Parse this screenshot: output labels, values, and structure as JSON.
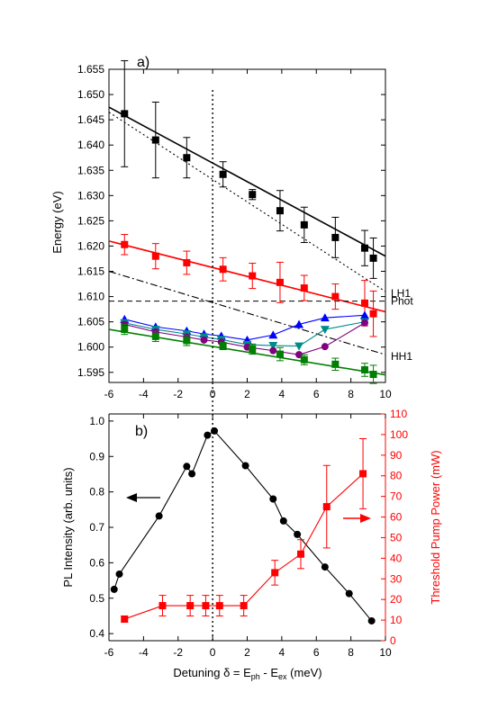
{
  "chart_data": [
    {
      "type": "scatter",
      "panel_label": "a)",
      "ylabel": "Energy (eV)",
      "xlim": [
        -6,
        10
      ],
      "ylim": [
        1.593,
        1.655
      ],
      "xticks": [
        -6,
        -4,
        -2,
        0,
        2,
        4,
        6,
        8,
        10
      ],
      "xtick_labels": [
        "-6",
        "-4",
        "-2",
        "0",
        "2",
        "4",
        "6",
        "8",
        "10"
      ],
      "yticks": [
        1.595,
        1.6,
        1.605,
        1.61,
        1.615,
        1.62,
        1.625,
        1.63,
        1.635,
        1.64,
        1.645,
        1.65,
        1.655
      ],
      "ytick_labels": [
        "1.595",
        "1.600",
        "1.605",
        "1.610",
        "1.615",
        "1.620",
        "1.625",
        "1.630",
        "1.635",
        "1.640",
        "1.645",
        "1.650",
        "1.655"
      ],
      "series": [
        {
          "color": "#000000",
          "marker": "square",
          "x": [
            -5.1,
            -3.3,
            -1.5,
            0.6,
            2.3,
            3.9,
            5.3,
            7.1,
            8.8,
            9.3
          ],
          "y": [
            1.6462,
            1.641,
            1.6375,
            1.6342,
            1.6302,
            1.627,
            1.6242,
            1.6217,
            1.6196,
            1.6176
          ],
          "err": [
            0.0105,
            0.0075,
            0.004,
            0.0025,
            0.001,
            0.004,
            0.0035,
            0.004,
            0.0035,
            0.004
          ]
        },
        {
          "color": "#ff0000",
          "marker": "square",
          "x": [
            -5.1,
            -3.3,
            -1.5,
            0.6,
            2.3,
            3.9,
            5.3,
            7.1,
            8.8,
            9.3
          ],
          "y": [
            1.6203,
            1.618,
            1.6167,
            1.6154,
            1.6141,
            1.6128,
            1.6117,
            1.61,
            1.6087,
            1.6066
          ],
          "err": [
            0.002,
            0.0025,
            0.0023,
            0.0023,
            0.0025,
            0.004,
            0.0025,
            0.0025,
            0.0045,
            0.0045
          ]
        },
        {
          "color": "#0000ff",
          "marker": "triangle-up",
          "x": [
            -5.1,
            -3.3,
            -1.5,
            -0.5,
            0.5,
            2.0,
            3.5,
            5.0,
            6.5,
            8.8
          ],
          "y": [
            1.6055,
            1.604,
            1.6032,
            1.6026,
            1.6022,
            1.6014,
            1.6024,
            1.6045,
            1.6058,
            1.6063
          ]
        },
        {
          "color": "#008b8b",
          "marker": "triangle-down",
          "x": [
            -5.1,
            -3.3,
            -1.5,
            -0.5,
            0.5,
            2.0,
            3.5,
            5.0,
            6.5,
            8.8
          ],
          "y": [
            1.6048,
            1.6035,
            1.6026,
            1.602,
            1.6015,
            1.6005,
            1.6003,
            1.6002,
            1.6035,
            1.605
          ]
        },
        {
          "color": "#800080",
          "marker": "circle",
          "x": [
            -5.1,
            -3.3,
            -1.5,
            -0.5,
            0.5,
            2.0,
            3.5,
            5.0,
            6.5,
            8.8
          ],
          "y": [
            1.6045,
            1.603,
            1.602,
            1.6014,
            1.601,
            1.6,
            1.5993,
            1.5985,
            1.6001,
            1.6048
          ]
        },
        {
          "color": "#008000",
          "marker": "square",
          "x": [
            -5.1,
            -3.3,
            -1.5,
            0.6,
            2.3,
            3.9,
            5.3,
            7.1,
            8.8,
            9.3
          ],
          "y": [
            1.6035,
            1.6021,
            1.6013,
            1.6002,
            1.5996,
            1.5986,
            1.5975,
            1.5966,
            1.5955,
            1.5946
          ],
          "err": [
            0.001,
            0.001,
            0.001,
            0.0007,
            0.001,
            0.0013,
            0.001,
            0.0012,
            0.0013,
            0.0018
          ]
        }
      ],
      "lines": [
        {
          "id": "fit-upper",
          "style": "solid",
          "color": "#000000",
          "x": [
            -6,
            10
          ],
          "y": [
            1.6475,
            1.618
          ]
        },
        {
          "id": "LH1",
          "label": "LH1",
          "style": "dotted",
          "color": "#000000",
          "x": [
            -6,
            10
          ],
          "y": [
            1.6465,
            1.611
          ]
        },
        {
          "id": "fit-red",
          "style": "solid",
          "color": "#ff0000",
          "x": [
            -6,
            10
          ],
          "y": [
            1.621,
            1.607
          ]
        },
        {
          "id": "Phot",
          "label": "Phot",
          "style": "dashed",
          "color": "#000000",
          "x": [
            -6,
            10
          ],
          "y": [
            1.6091,
            1.6091
          ]
        },
        {
          "id": "HH1",
          "label": "HH1",
          "style": "dash-dot",
          "color": "#000000",
          "x": [
            -6,
            10
          ],
          "y": [
            1.615,
            1.5985
          ]
        },
        {
          "id": "fit-lower",
          "style": "solid",
          "color": "#008000",
          "x": [
            -6,
            10
          ],
          "y": [
            1.6035,
            1.5945
          ]
        }
      ]
    },
    {
      "type": "line",
      "panel_label": "b)",
      "xlabel": "Detuning δ = E",
      "xlabel_sub1": "ph",
      "xlabel_mid": " - E",
      "xlabel_sub2": "ex",
      "xlabel_end": " (meV)",
      "ylabel": "PL Intensity (arb. units)",
      "ylabel_right": "Threshold Pump Power (mW)",
      "xlim": [
        -6,
        10
      ],
      "ylim": [
        0.38,
        1.02
      ],
      "ylim_right": [
        0,
        110
      ],
      "xticks": [
        -6,
        -4,
        -2,
        0,
        2,
        4,
        6,
        8,
        10
      ],
      "xtick_labels": [
        "-6",
        "-4",
        "-2",
        "0",
        "2",
        "4",
        "6",
        "8",
        "10"
      ],
      "yticks": [
        0.4,
        0.5,
        0.6,
        0.7,
        0.8,
        0.9,
        1.0
      ],
      "ytick_labels": [
        "0.4",
        "0.5",
        "0.6",
        "0.7",
        "0.8",
        "0.9",
        "1.0"
      ],
      "yticks_right": [
        0,
        10,
        20,
        30,
        40,
        50,
        60,
        70,
        80,
        90,
        100,
        110
      ],
      "ytick_labels_right": [
        "0",
        "10",
        "20",
        "30",
        "40",
        "50",
        "60",
        "70",
        "80",
        "90",
        "100",
        "110"
      ],
      "series": [
        {
          "axis": "left",
          "color": "#000000",
          "marker": "circle",
          "x": [
            -5.7,
            -5.4,
            -3.1,
            -1.5,
            -1.2,
            -0.3,
            0.1,
            1.9,
            3.5,
            4.1,
            4.9,
            6.5,
            7.9,
            9.2
          ],
          "y": [
            0.525,
            0.568,
            0.732,
            0.872,
            0.851,
            0.96,
            0.972,
            0.874,
            0.78,
            0.718,
            0.68,
            0.588,
            0.513,
            0.436
          ]
        },
        {
          "axis": "right",
          "color": "#ff0000",
          "marker": "square",
          "x": [
            -5.1,
            -2.9,
            -1.3,
            -0.4,
            0.4,
            1.8,
            3.6,
            5.1,
            6.6,
            8.7
          ],
          "y": [
            10.5,
            17,
            17,
            17,
            17,
            17,
            33,
            42,
            65,
            81
          ],
          "err": [
            1.5,
            5,
            5,
            5,
            5,
            5,
            6,
            7,
            20,
            17
          ]
        }
      ],
      "arrows": [
        {
          "direction": "left",
          "color": "#000000"
        },
        {
          "direction": "right",
          "color": "#ff0000"
        }
      ]
    }
  ]
}
